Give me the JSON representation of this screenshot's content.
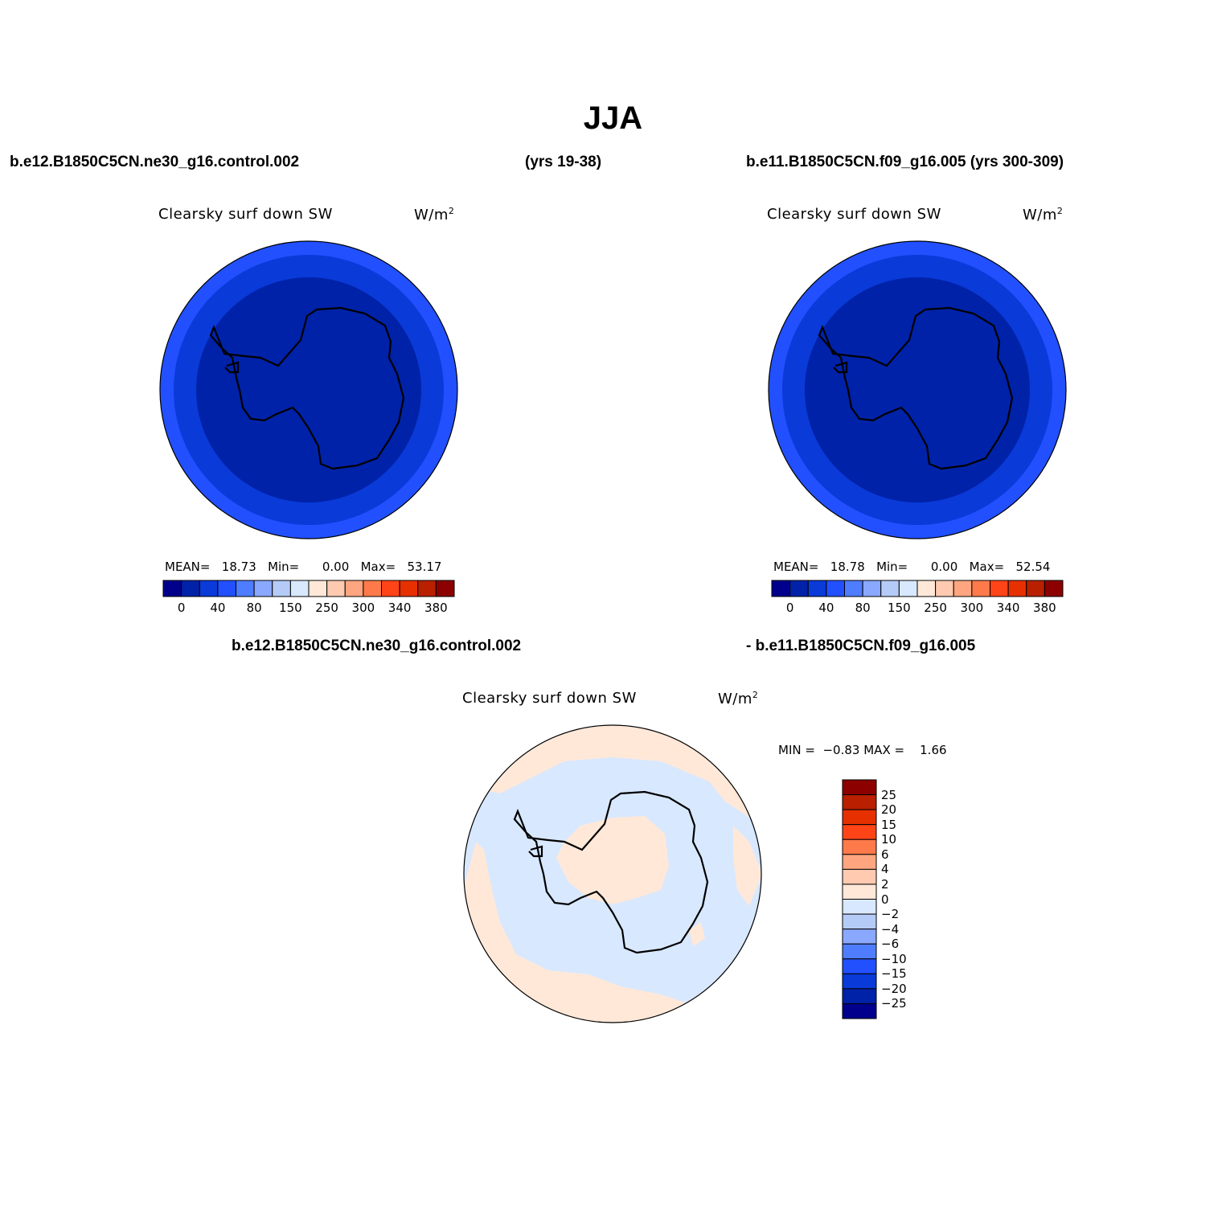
{
  "title": "JJA",
  "case1": {
    "name": "b.e12.B1850C5CN.ne30_g16.control.002",
    "years": "(yrs 19-38)"
  },
  "case2": {
    "name_years": "b.e11.B1850C5CN.f09_g16.005 (yrs 300-309)"
  },
  "diff_title": {
    "left": "b.e12.B1850C5CN.ne30_g16.control.002",
    "right": "- b.e11.B1850C5CN.f09_g16.005"
  },
  "panel_variable": "Clearsky surf down SW",
  "units": {
    "base": "W/m",
    "exp": "2"
  },
  "panel1": {
    "mean_label": "MEAN=",
    "mean": "18.73",
    "min_label": "Min=",
    "min": "0.00",
    "max_label": "Max=",
    "max": "53.17"
  },
  "panel2": {
    "mean_label": "MEAN=",
    "mean": "18.78",
    "min_label": "Min=",
    "min": "0.00",
    "max_label": "Max=",
    "max": "52.54"
  },
  "diff_stats": {
    "min_label": "MIN =",
    "min": "−0.83",
    "max_label": "MAX =",
    "max": "1.66"
  },
  "colorbar_top": {
    "ticks": [
      "0",
      "40",
      "80",
      "150",
      "250",
      "300",
      "340",
      "380"
    ],
    "colors": [
      "#00008c",
      "#0022a8",
      "#0a3ad8",
      "#2250ff",
      "#4e7dff",
      "#8aa8ff",
      "#b5cbf7",
      "#d8e8ff",
      "#ffe8d8",
      "#ffcab0",
      "#ffa680",
      "#ff7a4a",
      "#ff4418",
      "#e63000",
      "#b82000",
      "#8c0000"
    ]
  },
  "colorbar_diff": {
    "ticks": [
      "25",
      "20",
      "15",
      "10",
      "6",
      "4",
      "2",
      "0",
      "−2",
      "−4",
      "−6",
      "−10",
      "−15",
      "−20",
      "−25"
    ],
    "colors": [
      "#8c0000",
      "#b82000",
      "#e63000",
      "#ff4418",
      "#ff7a4a",
      "#ffa680",
      "#ffcab0",
      "#ffe8d8",
      "#d8e8ff",
      "#b5cbf7",
      "#8aa8ff",
      "#4e7dff",
      "#2250ff",
      "#0a3ad8",
      "#0022a8",
      "#00008c"
    ]
  },
  "map_colors": {
    "outer": "#2250ff",
    "middle": "#0a3ad8",
    "inner": "#0022a8",
    "diff_neg": "#d8e8ff",
    "diff_pos": "#ffe8d8"
  }
}
